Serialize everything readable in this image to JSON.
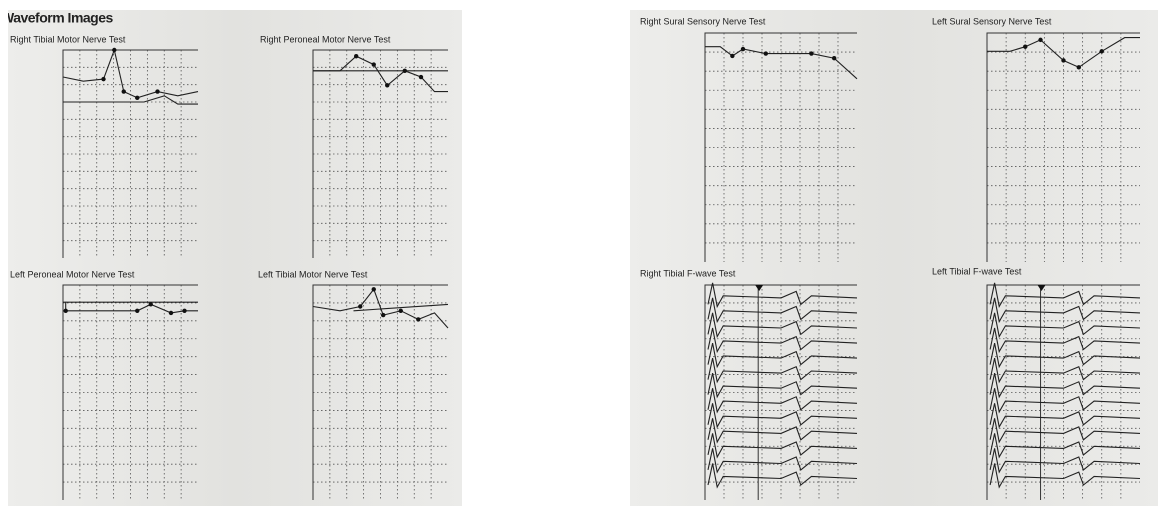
{
  "left_image": {
    "title": "Waveform Images",
    "panels": [
      {
        "title": "Right Tibial Motor Nerve Test"
      },
      {
        "title": "Right Peroneal Motor Nerve Test"
      },
      {
        "title": "Left Peroneal Motor Nerve Test"
      },
      {
        "title": "Left Tibial Motor Nerve Test"
      }
    ]
  },
  "right_image": {
    "panels": [
      {
        "title": "Right Sural Sensory Nerve Test"
      },
      {
        "title": "Left Sural Sensory Nerve Test"
      },
      {
        "title": "Right Tibial F-wave Test"
      },
      {
        "title": "Left Tibial F-wave Test"
      }
    ]
  }
}
